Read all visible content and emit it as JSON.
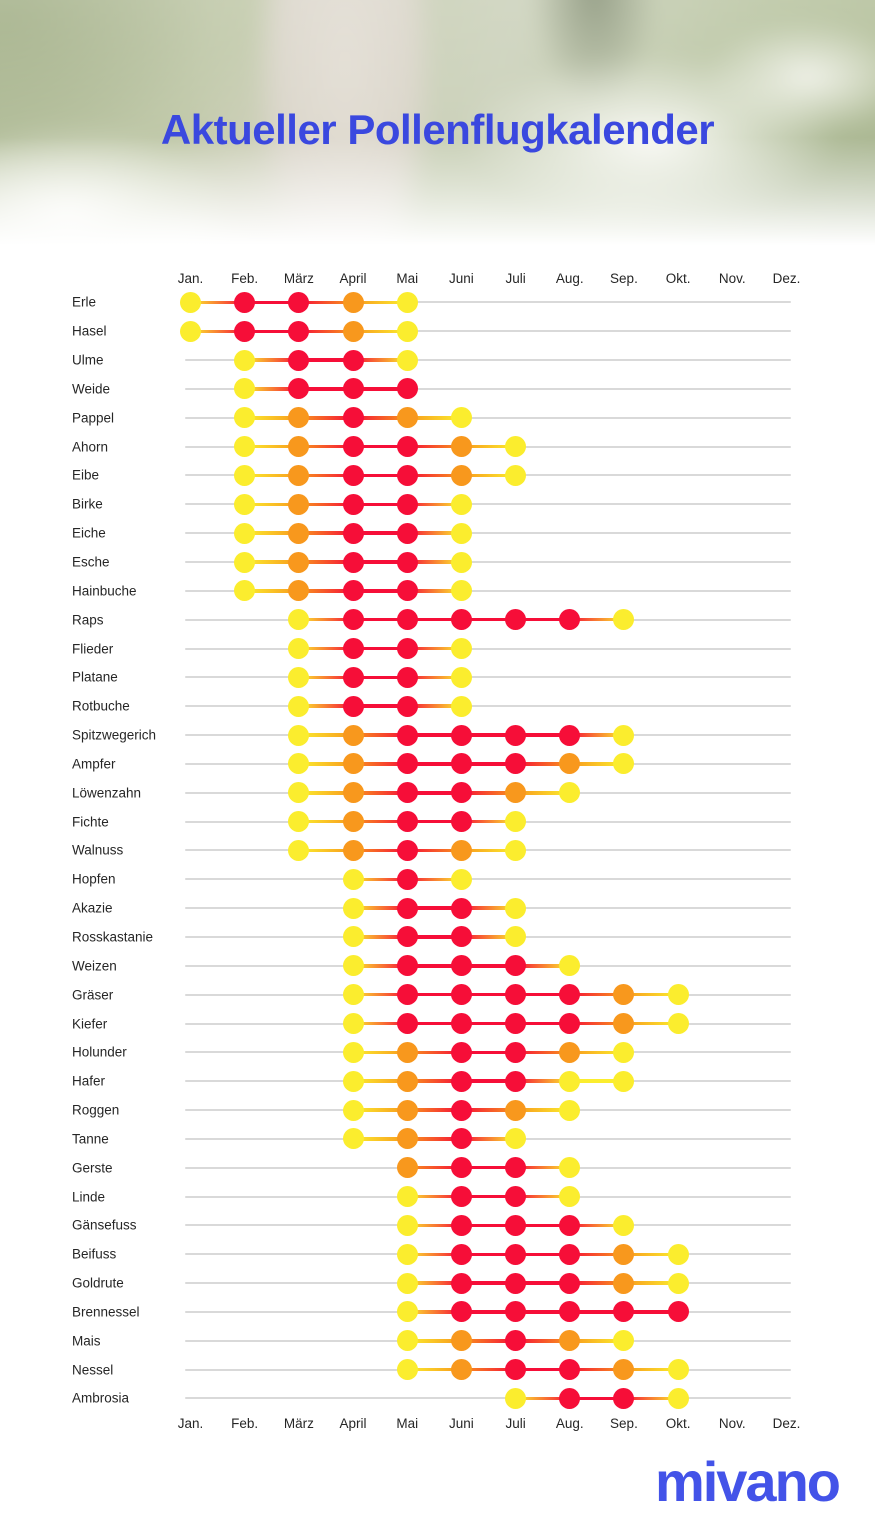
{
  "title": "Aktueller Pollenflugkalender",
  "logo_text": "mivano",
  "colors": {
    "title_blue": "#3A48DF",
    "logo_blue": "#4353E8",
    "axis_text": "#262626",
    "grid_line": "#D9D9D9",
    "level_low": "#FBED2E",
    "level_medium": "#F8981D",
    "level_high": "#F60E38"
  },
  "chart_data": {
    "type": "heatmap",
    "title": "Aktueller Pollenflugkalender",
    "x_categories": [
      "Jan.",
      "Feb.",
      "März",
      "April",
      "Mai",
      "Juni",
      "Juli",
      "Aug.",
      "Sep.",
      "Okt.",
      "Nov.",
      "Dez."
    ],
    "axis_shown": [
      "top",
      "bottom"
    ],
    "intensity_levels": {
      "low": "#FBED2E",
      "medium": "#F8981D",
      "high": "#F60E38"
    },
    "rows": [
      {
        "name": "Erle",
        "start": 0,
        "levels": [
          "low",
          "high",
          "high",
          "medium",
          "low"
        ]
      },
      {
        "name": "Hasel",
        "start": 0,
        "levels": [
          "low",
          "high",
          "high",
          "medium",
          "low"
        ]
      },
      {
        "name": "Ulme",
        "start": 1,
        "levels": [
          "low",
          "high",
          "high",
          "low"
        ]
      },
      {
        "name": "Weide",
        "start": 1,
        "levels": [
          "low",
          "high",
          "high",
          "high"
        ]
      },
      {
        "name": "Pappel",
        "start": 1,
        "levels": [
          "low",
          "medium",
          "high",
          "medium",
          "low"
        ]
      },
      {
        "name": "Ahorn",
        "start": 1,
        "levels": [
          "low",
          "medium",
          "high",
          "high",
          "medium",
          "low"
        ]
      },
      {
        "name": "Eibe",
        "start": 1,
        "levels": [
          "low",
          "medium",
          "high",
          "high",
          "medium",
          "low"
        ]
      },
      {
        "name": "Birke",
        "start": 1,
        "levels": [
          "low",
          "medium",
          "high",
          "high",
          "low"
        ]
      },
      {
        "name": "Eiche",
        "start": 1,
        "levels": [
          "low",
          "medium",
          "high",
          "high",
          "low"
        ]
      },
      {
        "name": "Esche",
        "start": 1,
        "levels": [
          "low",
          "medium",
          "high",
          "high",
          "low"
        ]
      },
      {
        "name": "Hainbuche",
        "start": 1,
        "levels": [
          "low",
          "medium",
          "high",
          "high",
          "low"
        ]
      },
      {
        "name": "Raps",
        "start": 2,
        "levels": [
          "low",
          "high",
          "high",
          "high",
          "high",
          "high",
          "low"
        ]
      },
      {
        "name": "Flieder",
        "start": 2,
        "levels": [
          "low",
          "high",
          "high",
          "low"
        ]
      },
      {
        "name": "Platane",
        "start": 2,
        "levels": [
          "low",
          "high",
          "high",
          "low"
        ]
      },
      {
        "name": "Rotbuche",
        "start": 2,
        "levels": [
          "low",
          "high",
          "high",
          "low"
        ]
      },
      {
        "name": "Spitzwegerich",
        "start": 2,
        "levels": [
          "low",
          "medium",
          "high",
          "high",
          "high",
          "high",
          "low"
        ]
      },
      {
        "name": "Ampfer",
        "start": 2,
        "levels": [
          "low",
          "medium",
          "high",
          "high",
          "high",
          "medium",
          "low"
        ]
      },
      {
        "name": "Löwenzahn",
        "start": 2,
        "levels": [
          "low",
          "medium",
          "high",
          "high",
          "medium",
          "low"
        ]
      },
      {
        "name": "Fichte",
        "start": 2,
        "levels": [
          "low",
          "medium",
          "high",
          "high",
          "low"
        ]
      },
      {
        "name": "Walnuss",
        "start": 2,
        "levels": [
          "low",
          "medium",
          "high",
          "medium",
          "low"
        ]
      },
      {
        "name": "Hopfen",
        "start": 3,
        "levels": [
          "low",
          "high",
          "low"
        ]
      },
      {
        "name": "Akazie",
        "start": 3,
        "levels": [
          "low",
          "high",
          "high",
          "low"
        ]
      },
      {
        "name": "Rosskastanie",
        "start": 3,
        "levels": [
          "low",
          "high",
          "high",
          "low"
        ]
      },
      {
        "name": "Weizen",
        "start": 3,
        "levels": [
          "low",
          "high",
          "high",
          "high",
          "low"
        ]
      },
      {
        "name": "Gräser",
        "start": 3,
        "levels": [
          "low",
          "high",
          "high",
          "high",
          "high",
          "medium",
          "low"
        ]
      },
      {
        "name": "Kiefer",
        "start": 3,
        "levels": [
          "low",
          "high",
          "high",
          "high",
          "high",
          "medium",
          "low"
        ]
      },
      {
        "name": "Holunder",
        "start": 3,
        "levels": [
          "low",
          "medium",
          "high",
          "high",
          "medium",
          "low"
        ]
      },
      {
        "name": "Hafer",
        "start": 3,
        "levels": [
          "low",
          "medium",
          "high",
          "high",
          "low",
          "low"
        ]
      },
      {
        "name": "Roggen",
        "start": 3,
        "levels": [
          "low",
          "medium",
          "high",
          "medium",
          "low"
        ]
      },
      {
        "name": "Tanne",
        "start": 3,
        "levels": [
          "low",
          "medium",
          "high",
          "low"
        ]
      },
      {
        "name": "Gerste",
        "start": 4,
        "levels": [
          "medium",
          "high",
          "high",
          "low"
        ]
      },
      {
        "name": "Linde",
        "start": 4,
        "levels": [
          "low",
          "high",
          "high",
          "low"
        ]
      },
      {
        "name": "Gänsefuss",
        "start": 4,
        "levels": [
          "low",
          "high",
          "high",
          "high",
          "low"
        ]
      },
      {
        "name": "Beifuss",
        "start": 4,
        "levels": [
          "low",
          "high",
          "high",
          "high",
          "medium",
          "low"
        ]
      },
      {
        "name": "Goldrute",
        "start": 4,
        "levels": [
          "low",
          "high",
          "high",
          "high",
          "medium",
          "low"
        ]
      },
      {
        "name": "Brennessel",
        "start": 4,
        "levels": [
          "low",
          "high",
          "high",
          "high",
          "high",
          "high"
        ]
      },
      {
        "name": "Mais",
        "start": 4,
        "levels": [
          "low",
          "medium",
          "high",
          "medium",
          "low"
        ]
      },
      {
        "name": "Nessel",
        "start": 4,
        "levels": [
          "low",
          "medium",
          "high",
          "high",
          "medium",
          "low"
        ]
      },
      {
        "name": "Ambrosia",
        "start": 6,
        "levels": [
          "low",
          "high",
          "high",
          "low"
        ]
      }
    ]
  }
}
